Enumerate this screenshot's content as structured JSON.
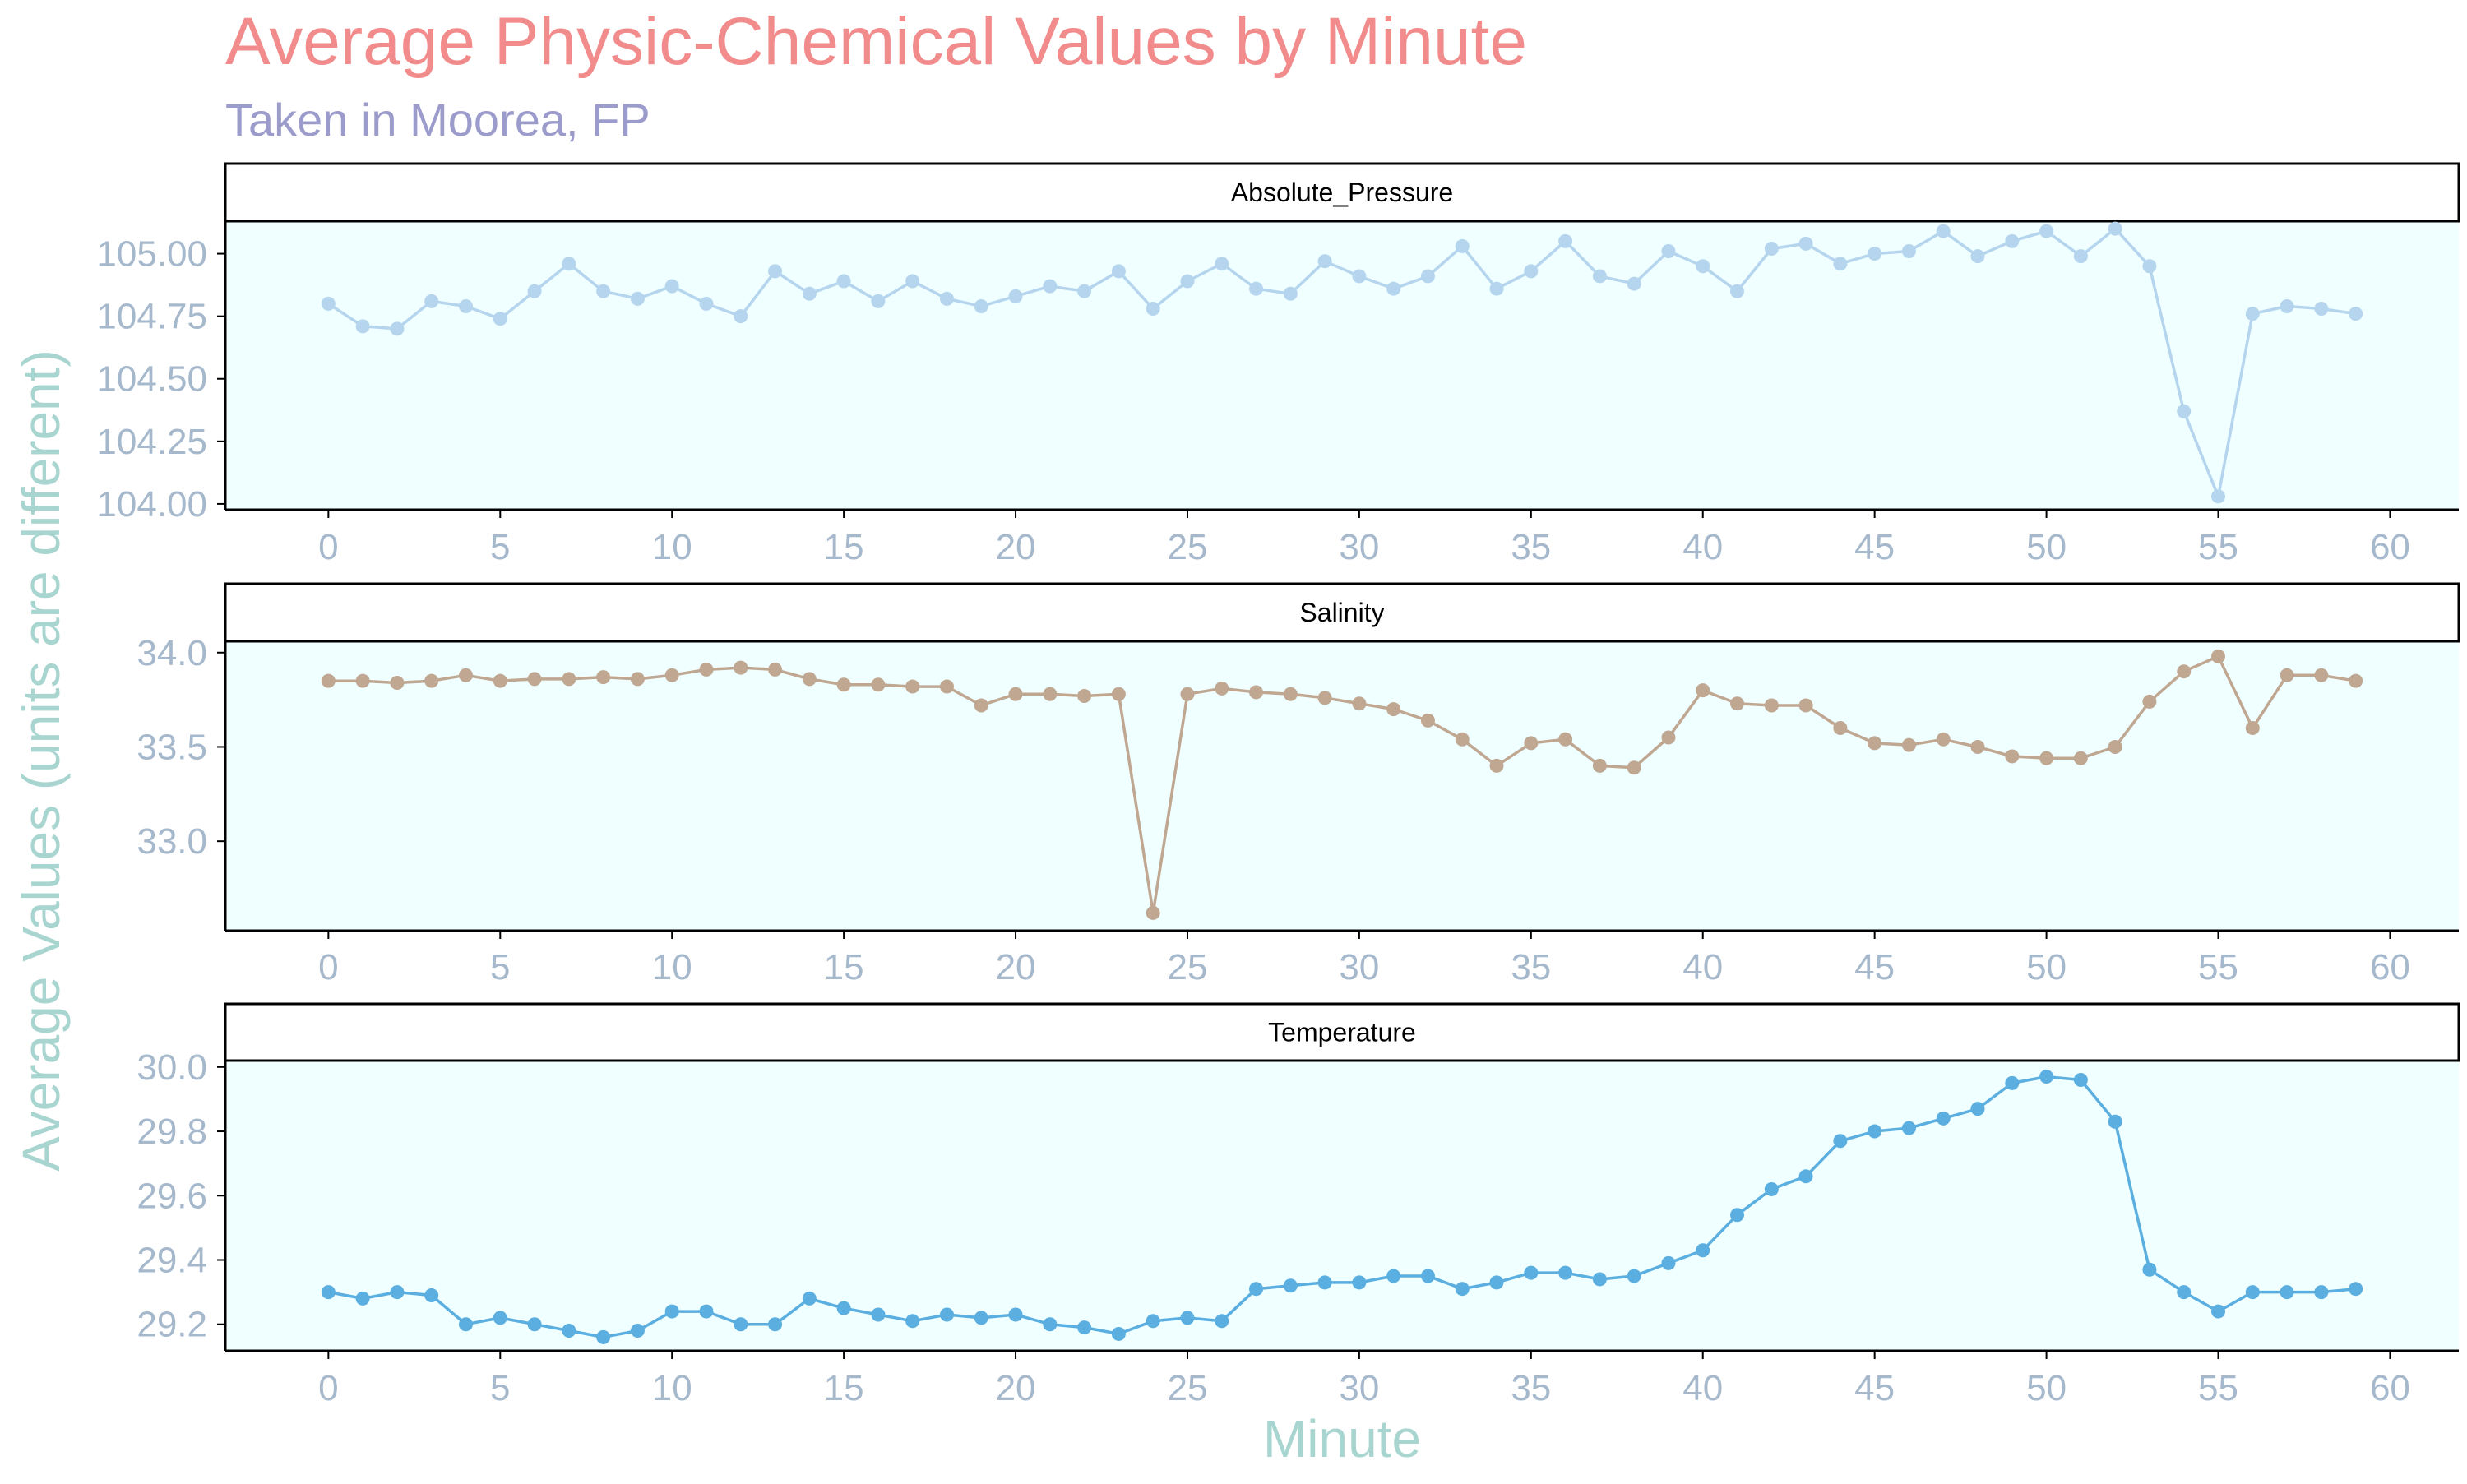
{
  "title": "Average Physic-Chemical Values by Minute",
  "subtitle": "Taken in Moorea, FP",
  "colors": {
    "title": "#f28b8b",
    "subtitle": "#9c9ccc",
    "axis_title": "#a8d5d0",
    "tick_label": "#a6b9cc",
    "panel_bg": "#f0ffff",
    "strip_bg": "#ffffff",
    "strip_border": "#000000",
    "axis_line": "#000000"
  },
  "chart_data": {
    "type": "line",
    "facet": "rows",
    "xlabel": "Minute",
    "ylabel": "Average Values (units are different)",
    "xlim": [
      -3,
      62
    ],
    "xticks": [
      0,
      5,
      10,
      15,
      20,
      25,
      30,
      35,
      40,
      45,
      50,
      55,
      60
    ],
    "grid": false,
    "x": [
      0,
      1,
      2,
      3,
      4,
      5,
      6,
      7,
      8,
      9,
      10,
      11,
      12,
      13,
      14,
      15,
      16,
      17,
      18,
      19,
      20,
      21,
      22,
      23,
      24,
      25,
      26,
      27,
      28,
      29,
      30,
      31,
      32,
      33,
      34,
      35,
      36,
      37,
      38,
      39,
      40,
      41,
      42,
      43,
      44,
      45,
      46,
      47,
      48,
      49,
      50,
      51,
      52,
      53,
      54,
      55,
      56,
      57,
      58,
      59
    ],
    "panels": [
      {
        "name": "Absolute_Pressure",
        "color": "#b5d5ee",
        "ylim": [
          103.98,
          105.13
        ],
        "yticks": [
          "104.00",
          "104.25",
          "104.50",
          "104.75",
          "105.00"
        ],
        "values": [
          104.8,
          104.71,
          104.7,
          104.81,
          104.79,
          104.74,
          104.85,
          104.96,
          104.85,
          104.82,
          104.87,
          104.8,
          104.75,
          104.93,
          104.84,
          104.89,
          104.81,
          104.89,
          104.82,
          104.79,
          104.83,
          104.87,
          104.85,
          104.93,
          104.78,
          104.89,
          104.96,
          104.86,
          104.84,
          104.97,
          104.91,
          104.86,
          104.91,
          105.03,
          104.86,
          104.93,
          105.05,
          104.91,
          104.88,
          105.01,
          104.95,
          104.85,
          105.02,
          105.04,
          104.96,
          105.0,
          105.01,
          105.09,
          104.99,
          105.05,
          105.09,
          104.99,
          105.1,
          104.95,
          104.37,
          104.03,
          104.76,
          104.79,
          104.78,
          104.76
        ]
      },
      {
        "name": "Salinity",
        "color": "#bfa792",
        "ylim": [
          32.53,
          34.06
        ],
        "yticks": [
          "33.0",
          "33.5",
          "34.0"
        ],
        "values": [
          33.85,
          33.85,
          33.84,
          33.85,
          33.88,
          33.85,
          33.86,
          33.86,
          33.87,
          33.86,
          33.88,
          33.91,
          33.92,
          33.91,
          33.86,
          33.83,
          33.83,
          33.82,
          33.82,
          33.72,
          33.78,
          33.78,
          33.77,
          33.78,
          32.62,
          33.78,
          33.81,
          33.79,
          33.78,
          33.76,
          33.73,
          33.7,
          33.64,
          33.54,
          33.4,
          33.52,
          33.54,
          33.4,
          33.39,
          33.55,
          33.8,
          33.73,
          33.72,
          33.72,
          33.6,
          33.52,
          33.51,
          33.54,
          33.5,
          33.45,
          33.44,
          33.44,
          33.5,
          33.74,
          33.9,
          33.98,
          33.6,
          33.88,
          33.88,
          33.85
        ]
      },
      {
        "name": "Temperature",
        "color": "#5aaee0",
        "ylim": [
          29.12,
          30.02
        ],
        "yticks": [
          "29.2",
          "29.4",
          "29.6",
          "29.8",
          "30.0"
        ],
        "values": [
          29.3,
          29.28,
          29.3,
          29.29,
          29.2,
          29.22,
          29.2,
          29.18,
          29.16,
          29.18,
          29.24,
          29.24,
          29.2,
          29.2,
          29.28,
          29.25,
          29.23,
          29.21,
          29.23,
          29.22,
          29.23,
          29.2,
          29.19,
          29.17,
          29.21,
          29.22,
          29.21,
          29.31,
          29.32,
          29.33,
          29.33,
          29.35,
          29.35,
          29.31,
          29.33,
          29.36,
          29.36,
          29.34,
          29.35,
          29.39,
          29.43,
          29.54,
          29.62,
          29.66,
          29.77,
          29.8,
          29.81,
          29.84,
          29.87,
          29.95,
          29.97,
          29.96,
          29.83,
          29.37,
          29.3,
          29.24,
          29.3,
          29.3,
          29.3,
          29.31
        ]
      }
    ]
  }
}
